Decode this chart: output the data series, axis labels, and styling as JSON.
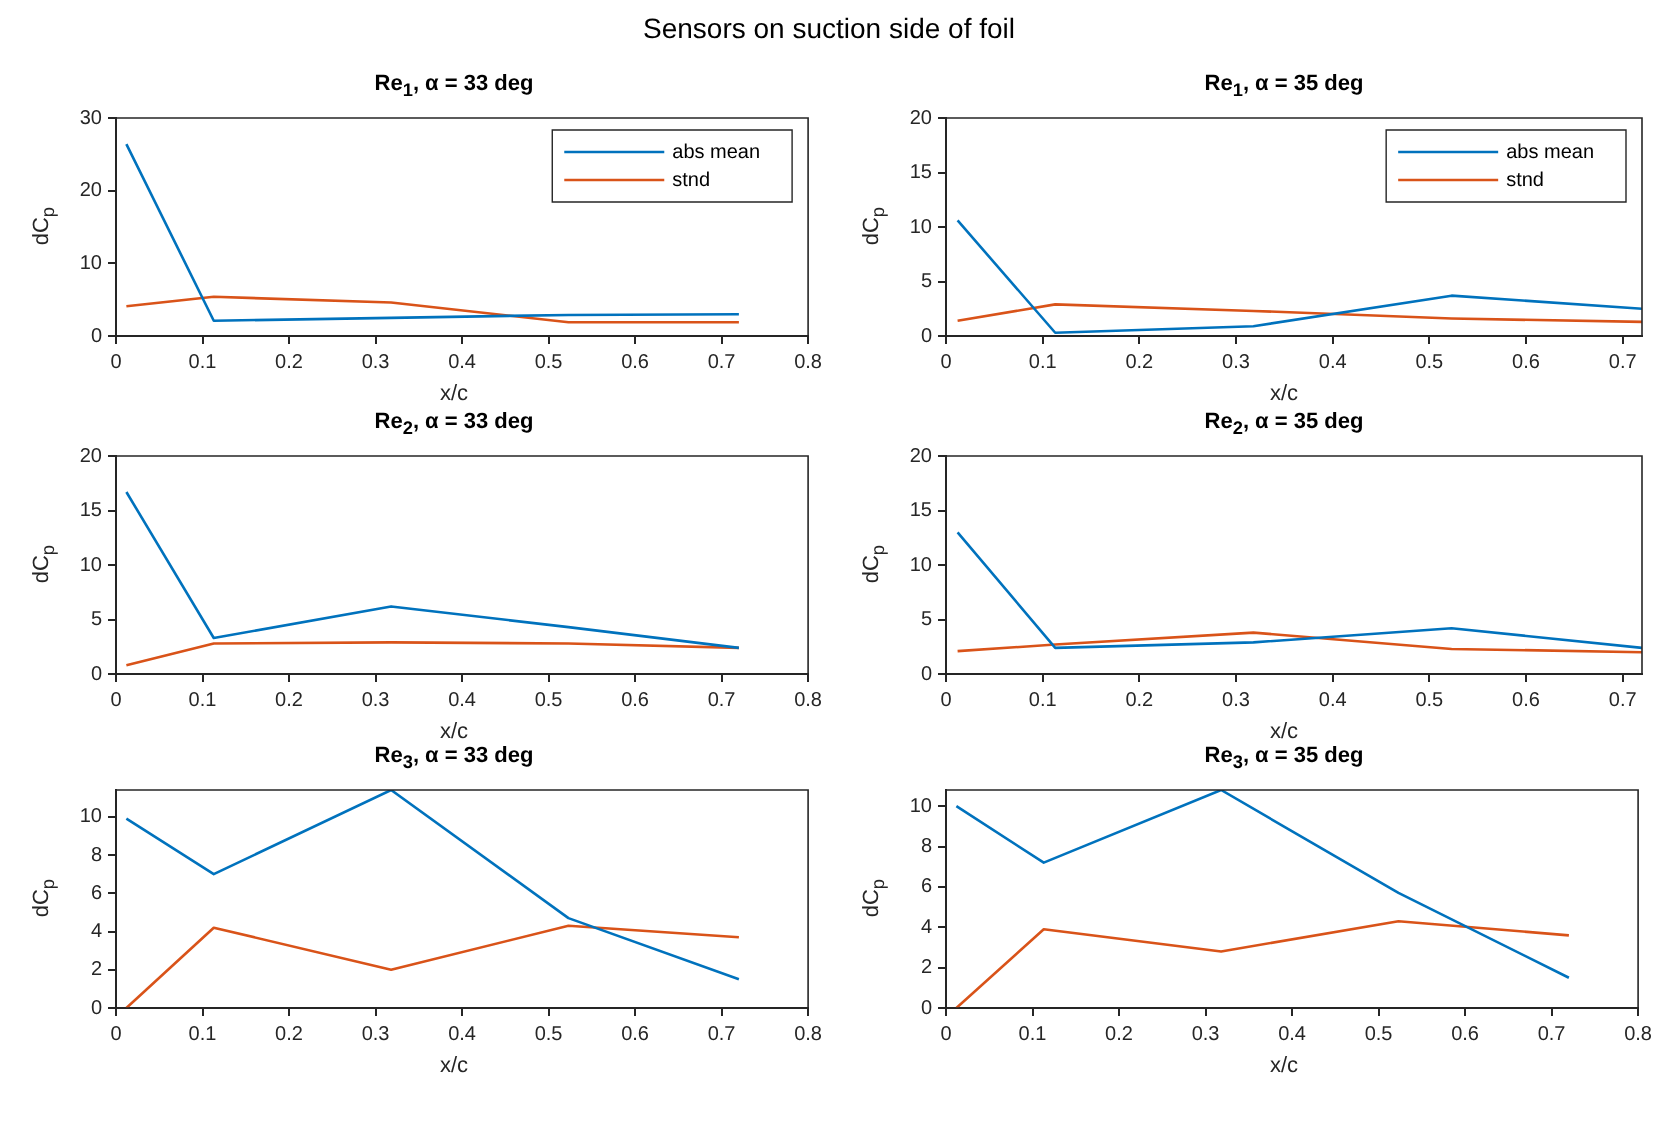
{
  "chart_data": [
    {
      "type": "line",
      "title": "Re$_{1}$, α = 33 deg",
      "annotations": [
        "Sensors on suction side of foil"
      ],
      "xlabel": "x/c",
      "ylabel": "dC$_{p}$",
      "x": [
        0.012,
        0.113,
        0.318,
        0.523,
        0.72
      ],
      "xlim": [
        0,
        0.8
      ],
      "xticks": [
        0,
        0.1,
        0.2,
        0.3,
        0.4,
        0.5,
        0.6,
        0.7,
        0.8
      ],
      "ylim": [
        0,
        30
      ],
      "yticks": [
        0,
        10,
        20,
        30
      ],
      "legend": "top right",
      "series": [
        {
          "name": "abs mean",
          "color": "#0072bd",
          "values": [
            26.4,
            2.1,
            2.5,
            2.9,
            3.0
          ]
        },
        {
          "name": "stnd",
          "color": "#d95319",
          "values": [
            4.1,
            5.4,
            4.6,
            1.9,
            1.9
          ]
        }
      ]
    },
    {
      "type": "line",
      "title": "Re$_{1}$, α = 35 deg",
      "xlabel": "x/c",
      "ylabel": "dC$_{p}$",
      "x": [
        0.012,
        0.113,
        0.318,
        0.523,
        0.72
      ],
      "xlim": [
        0,
        0.72
      ],
      "xticks": [
        0,
        0.1,
        0.2,
        0.3,
        0.4,
        0.5,
        0.6,
        0.7
      ],
      "ylim": [
        0,
        20
      ],
      "yticks": [
        0,
        5,
        10,
        15,
        20
      ],
      "legend": "top right",
      "series": [
        {
          "name": "abs mean",
          "color": "#0072bd",
          "values": [
            10.6,
            0.3,
            0.9,
            3.7,
            2.5
          ]
        },
        {
          "name": "stnd",
          "color": "#d95319",
          "values": [
            1.4,
            2.9,
            2.3,
            1.6,
            1.3
          ]
        }
      ]
    },
    {
      "type": "line",
      "title": "Re$_{2}$, α = 33 deg",
      "xlabel": "x/c",
      "ylabel": "dC$_{p}$",
      "x": [
        0.012,
        0.113,
        0.318,
        0.523,
        0.72
      ],
      "xlim": [
        0,
        0.8
      ],
      "xticks": [
        0,
        0.1,
        0.2,
        0.3,
        0.4,
        0.5,
        0.6,
        0.7,
        0.8
      ],
      "ylim": [
        0,
        20
      ],
      "yticks": [
        0,
        5,
        10,
        15,
        20
      ],
      "series": [
        {
          "color": "#0072bd",
          "values": [
            16.7,
            3.3,
            6.2,
            4.3,
            2.4
          ]
        },
        {
          "color": "#d95319",
          "values": [
            0.8,
            2.8,
            2.9,
            2.8,
            2.4
          ]
        }
      ]
    },
    {
      "type": "line",
      "title": "Re$_{2}$, α = 35 deg",
      "xlabel": "x/c",
      "ylabel": "dC$_{p}$",
      "x": [
        0.012,
        0.113,
        0.318,
        0.523,
        0.72
      ],
      "xlim": [
        0,
        0.72
      ],
      "xticks": [
        0,
        0.1,
        0.2,
        0.3,
        0.4,
        0.5,
        0.6,
        0.7
      ],
      "ylim": [
        0,
        20
      ],
      "yticks": [
        0,
        5,
        10,
        15,
        20
      ],
      "series": [
        {
          "color": "#0072bd",
          "values": [
            13.0,
            2.4,
            2.9,
            4.2,
            2.4
          ]
        },
        {
          "color": "#d95319",
          "values": [
            2.1,
            2.7,
            3.8,
            2.3,
            2.0
          ]
        }
      ]
    },
    {
      "type": "line",
      "title": "Re$_{3}$, α = 33 deg",
      "xlabel": "x/c",
      "ylabel": "dC$_{p}$",
      "x": [
        0.012,
        0.113,
        0.318,
        0.523,
        0.72
      ],
      "xlim": [
        0,
        0.8
      ],
      "xticks": [
        0,
        0.1,
        0.2,
        0.3,
        0.4,
        0.5,
        0.6,
        0.7,
        0.8
      ],
      "ylim": [
        0,
        11.4
      ],
      "yticks": [
        0,
        2,
        4,
        6,
        8,
        10
      ],
      "series": [
        {
          "color": "#0072bd",
          "values": [
            9.9,
            7.0,
            11.4,
            4.7,
            1.5
          ]
        },
        {
          "color": "#d95319",
          "values": [
            0,
            4.2,
            2.0,
            4.3,
            3.7
          ]
        }
      ]
    },
    {
      "type": "line",
      "title": "Re$_{3}$, α = 35 deg",
      "xlabel": "x/c",
      "ylabel": "dC$_{p}$",
      "x": [
        0.012,
        0.113,
        0.318,
        0.523,
        0.72
      ],
      "xlim": [
        0,
        0.8
      ],
      "xticks": [
        0,
        0.1,
        0.2,
        0.3,
        0.4,
        0.5,
        0.6,
        0.7,
        0.8
      ],
      "ylim": [
        0,
        10.8
      ],
      "yticks": [
        0,
        2,
        4,
        6,
        8,
        10
      ],
      "series": [
        {
          "color": "#0072bd",
          "values": [
            10.0,
            7.2,
            10.8,
            5.7,
            1.5
          ]
        },
        {
          "color": "#d95319",
          "values": [
            0,
            3.9,
            2.8,
            4.3,
            3.6
          ]
        }
      ]
    }
  ]
}
